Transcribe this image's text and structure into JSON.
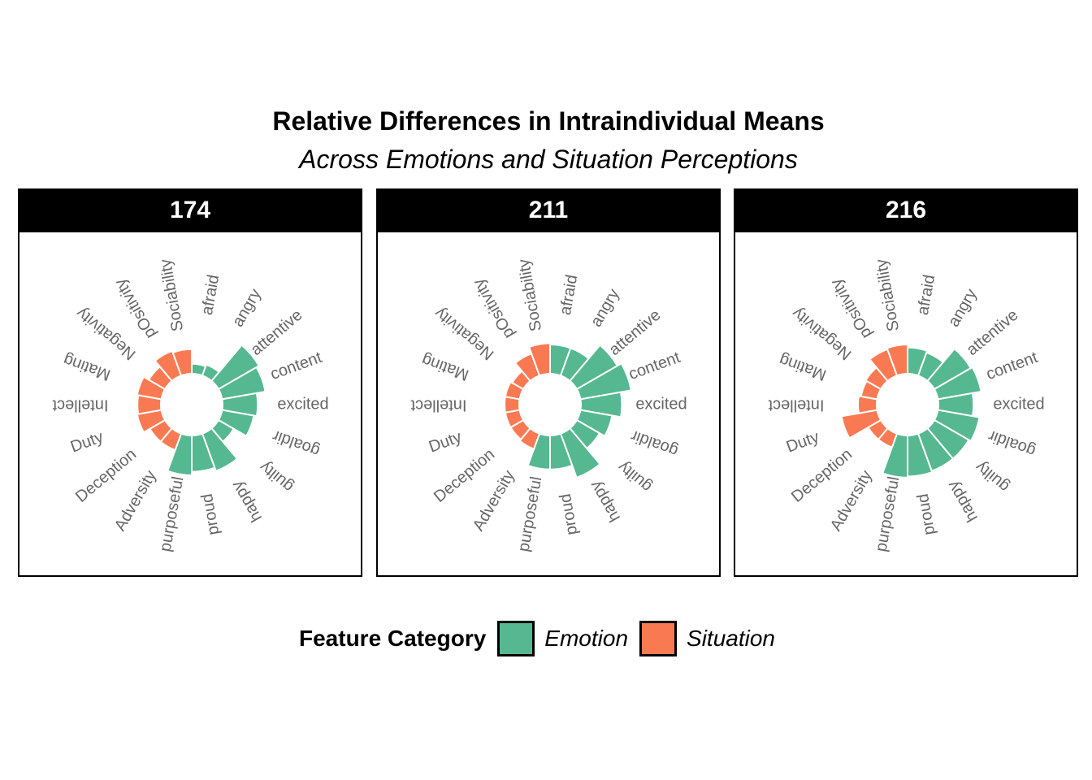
{
  "chart_data": {
    "type": "bar",
    "coordinate": "polar",
    "title": "Relative Differences in Intraindividual Means",
    "subtitle": "Across Emotions and Situation Perceptions",
    "categories": [
      "afraid",
      "angry",
      "attentive",
      "content",
      "excited",
      "goaldir",
      "guilty",
      "happy",
      "proud",
      "purposeful",
      "Adversity",
      "Deception",
      "Duty",
      "Intellect",
      "Mating",
      "Negativity",
      "pOsitivity",
      "Sociability"
    ],
    "category_groups": [
      "Emotion",
      "Emotion",
      "Emotion",
      "Emotion",
      "Emotion",
      "Emotion",
      "Emotion",
      "Emotion",
      "Emotion",
      "Emotion",
      "Situation",
      "Situation",
      "Situation",
      "Situation",
      "Situation",
      "Situation",
      "Situation",
      "Situation"
    ],
    "inner_hole": 0.48,
    "ylim": [
      0,
      1.0
    ],
    "panels": [
      {
        "name": "174",
        "values": [
          0.17,
          0.2,
          0.8,
          0.75,
          0.6,
          0.55,
          0.3,
          0.68,
          0.62,
          0.68,
          0.3,
          0.3,
          0.42,
          0.4,
          0.42,
          0.32,
          0.45,
          0.42
        ]
      },
      {
        "name": "211",
        "values": [
          0.5,
          0.5,
          0.8,
          0.88,
          0.7,
          0.55,
          0.45,
          0.8,
          0.58,
          0.58,
          0.28,
          0.25,
          0.25,
          0.25,
          0.25,
          0.22,
          0.4,
          0.52
        ]
      },
      {
        "name": "216",
        "values": [
          0.45,
          0.42,
          0.72,
          0.75,
          0.6,
          0.72,
          0.68,
          0.68,
          0.7,
          0.72,
          0.25,
          0.25,
          0.62,
          0.32,
          0.28,
          0.3,
          0.48,
          0.5
        ]
      }
    ]
  },
  "legend": {
    "title": "Feature Category",
    "items": [
      {
        "label": "Emotion",
        "color": "#55B891"
      },
      {
        "label": "Situation",
        "color": "#F97A52"
      }
    ]
  }
}
